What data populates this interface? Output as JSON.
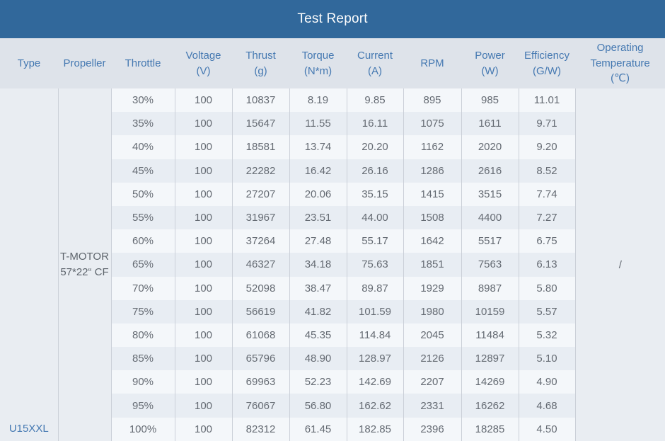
{
  "title": "Test Report",
  "colors": {
    "title_bar_bg": "#31689b",
    "title_text": "#fdfdfd",
    "header_bg": "#dee3ea",
    "header_text": "#4478b1",
    "row_light": "#f4f7fa",
    "row_dark": "#e8edf3",
    "merged_cell_bg": "#e9edf2",
    "border": "#cbd0d8",
    "data_text": "#656b73",
    "type_text": "#4579b2"
  },
  "table": {
    "columns": [
      {
        "id": "type",
        "lines": [
          "Type"
        ]
      },
      {
        "id": "propeller",
        "lines": [
          "Propeller"
        ]
      },
      {
        "id": "throttle",
        "lines": [
          "Throttle"
        ]
      },
      {
        "id": "voltage",
        "lines": [
          "Voltage",
          "(V)"
        ]
      },
      {
        "id": "thrust",
        "lines": [
          "Thrust",
          "(g)"
        ]
      },
      {
        "id": "torque",
        "lines": [
          "Torque",
          "(N*m)"
        ]
      },
      {
        "id": "current",
        "lines": [
          "Current",
          "(A)"
        ]
      },
      {
        "id": "rpm",
        "lines": [
          "RPM"
        ]
      },
      {
        "id": "power",
        "lines": [
          "Power",
          "(W)"
        ]
      },
      {
        "id": "efficiency",
        "lines": [
          "Efficiency",
          "(G/W)"
        ]
      },
      {
        "id": "operating_temperature",
        "lines": [
          "Operating",
          "Temperature",
          "(℃)"
        ]
      }
    ],
    "type": "U15XXL",
    "propeller_lines": [
      "T-MOTOR",
      "57*22“ CF"
    ],
    "operating_temperature": "/",
    "rows": [
      {
        "throttle": "30%",
        "voltage": "100",
        "thrust": "10837",
        "torque": "8.19",
        "current": "9.85",
        "rpm": "895",
        "power": "985",
        "efficiency": "11.01"
      },
      {
        "throttle": "35%",
        "voltage": "100",
        "thrust": "15647",
        "torque": "11.55",
        "current": "16.11",
        "rpm": "1075",
        "power": "1611",
        "efficiency": "9.71"
      },
      {
        "throttle": "40%",
        "voltage": "100",
        "thrust": "18581",
        "torque": "13.74",
        "current": "20.20",
        "rpm": "1162",
        "power": "2020",
        "efficiency": "9.20"
      },
      {
        "throttle": "45%",
        "voltage": "100",
        "thrust": "22282",
        "torque": "16.42",
        "current": "26.16",
        "rpm": "1286",
        "power": "2616",
        "efficiency": "8.52"
      },
      {
        "throttle": "50%",
        "voltage": "100",
        "thrust": "27207",
        "torque": "20.06",
        "current": "35.15",
        "rpm": "1415",
        "power": "3515",
        "efficiency": "7.74"
      },
      {
        "throttle": "55%",
        "voltage": "100",
        "thrust": "31967",
        "torque": "23.51",
        "current": "44.00",
        "rpm": "1508",
        "power": "4400",
        "efficiency": "7.27"
      },
      {
        "throttle": "60%",
        "voltage": "100",
        "thrust": "37264",
        "torque": "27.48",
        "current": "55.17",
        "rpm": "1642",
        "power": "5517",
        "efficiency": "6.75"
      },
      {
        "throttle": "65%",
        "voltage": "100",
        "thrust": "46327",
        "torque": "34.18",
        "current": "75.63",
        "rpm": "1851",
        "power": "7563",
        "efficiency": "6.13"
      },
      {
        "throttle": "70%",
        "voltage": "100",
        "thrust": "52098",
        "torque": "38.47",
        "current": "89.87",
        "rpm": "1929",
        "power": "8987",
        "efficiency": "5.80"
      },
      {
        "throttle": "75%",
        "voltage": "100",
        "thrust": "56619",
        "torque": "41.82",
        "current": "101.59",
        "rpm": "1980",
        "power": "10159",
        "efficiency": "5.57"
      },
      {
        "throttle": "80%",
        "voltage": "100",
        "thrust": "61068",
        "torque": "45.35",
        "current": "114.84",
        "rpm": "2045",
        "power": "11484",
        "efficiency": "5.32"
      },
      {
        "throttle": "85%",
        "voltage": "100",
        "thrust": "65796",
        "torque": "48.90",
        "current": "128.97",
        "rpm": "2126",
        "power": "12897",
        "efficiency": "5.10"
      },
      {
        "throttle": "90%",
        "voltage": "100",
        "thrust": "69963",
        "torque": "52.23",
        "current": "142.69",
        "rpm": "2207",
        "power": "14269",
        "efficiency": "4.90"
      },
      {
        "throttle": "95%",
        "voltage": "100",
        "thrust": "76067",
        "torque": "56.80",
        "current": "162.62",
        "rpm": "2331",
        "power": "16262",
        "efficiency": "4.68"
      },
      {
        "throttle": "100%",
        "voltage": "100",
        "thrust": "82312",
        "torque": "61.45",
        "current": "182.85",
        "rpm": "2396",
        "power": "18285",
        "efficiency": "4.50"
      }
    ]
  }
}
